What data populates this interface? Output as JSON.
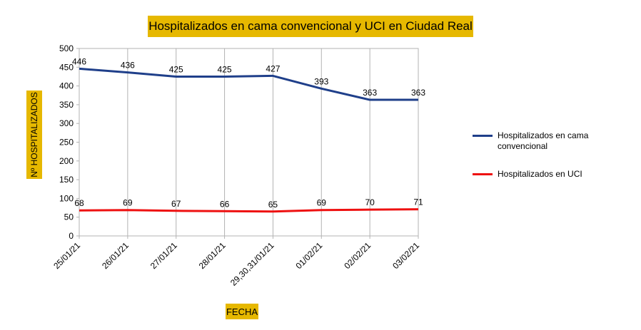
{
  "chart_data": {
    "type": "line",
    "title": "Hospitalizados en cama convencional y UCI en Ciudad Real",
    "xlabel": "FECHA",
    "ylabel": "Nº HOSPITALIZADOS",
    "categories": [
      "25/01/21",
      "26/01/21",
      "27/01/21",
      "28/01/21",
      "29,30,31/01/21",
      "01/02/21",
      "02/02/21",
      "03/02/21"
    ],
    "ylim": [
      0,
      500
    ],
    "yticks": [
      0,
      50,
      100,
      150,
      200,
      250,
      300,
      350,
      400,
      450,
      500
    ],
    "grid": "vertical",
    "legend": "right",
    "series": [
      {
        "name": "Hospitalizados en cama convencional",
        "color": "#1f3f8a",
        "values": [
          446,
          436,
          425,
          425,
          427,
          393,
          363,
          363
        ]
      },
      {
        "name": "Hospitalizados en UCI",
        "color": "#ee1111",
        "values": [
          68,
          69,
          67,
          66,
          65,
          69,
          70,
          71
        ]
      }
    ]
  }
}
